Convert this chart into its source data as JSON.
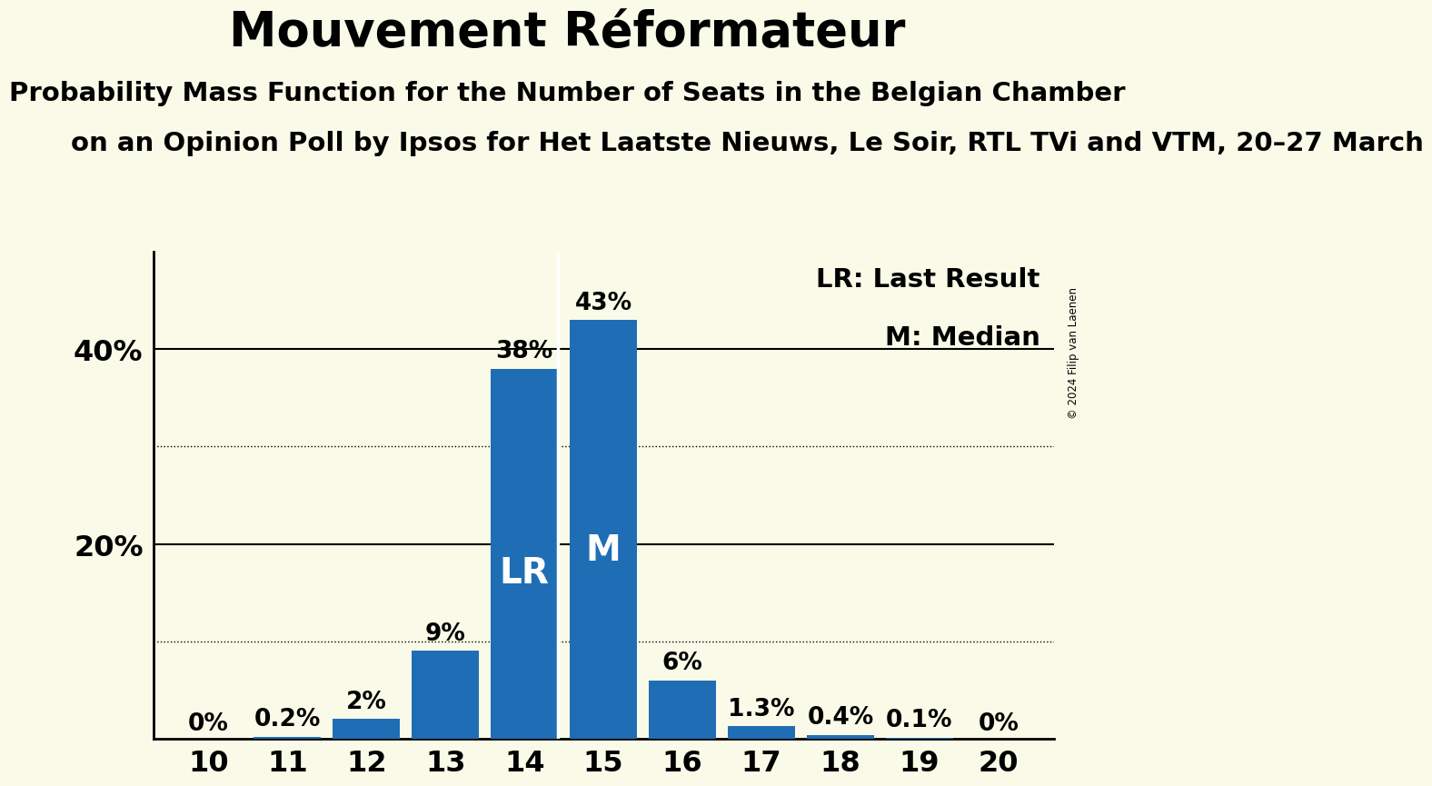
{
  "title": "Mouvement Réformateur",
  "subtitle1": "Probability Mass Function for the Number of Seats in the Belgian Chamber",
  "subtitle2": "on an Opinion Poll by Ipsos for Het Laatste Nieuws, Le Soir, RTL TVi and VTM, 20–27 March",
  "copyright": "© 2024 Filip van Laenen",
  "seats": [
    10,
    11,
    12,
    13,
    14,
    15,
    16,
    17,
    18,
    19,
    20
  ],
  "probabilities": [
    0.0,
    0.2,
    2.0,
    9.0,
    38.0,
    43.0,
    6.0,
    1.3,
    0.4,
    0.1,
    0.0
  ],
  "labels": [
    "0%",
    "0.2%",
    "2%",
    "9%",
    "38%",
    "43%",
    "6%",
    "1.3%",
    "0.4%",
    "0.1%",
    "0%"
  ],
  "bar_color": "#1f6eb5",
  "background_color": "#fafae8",
  "lr_seat": 14,
  "median_seat": 15,
  "ylim": [
    0,
    50
  ],
  "solid_gridlines": [
    20.0,
    40.0
  ],
  "dotted_gridlines": [
    10.0,
    30.0
  ],
  "title_fontsize": 38,
  "subtitle1_fontsize": 21,
  "subtitle2_fontsize": 21,
  "label_fontsize": 19,
  "axis_fontsize": 23,
  "legend_fontsize": 21,
  "lr_label_fontsize": 28,
  "m_label_fontsize": 28
}
